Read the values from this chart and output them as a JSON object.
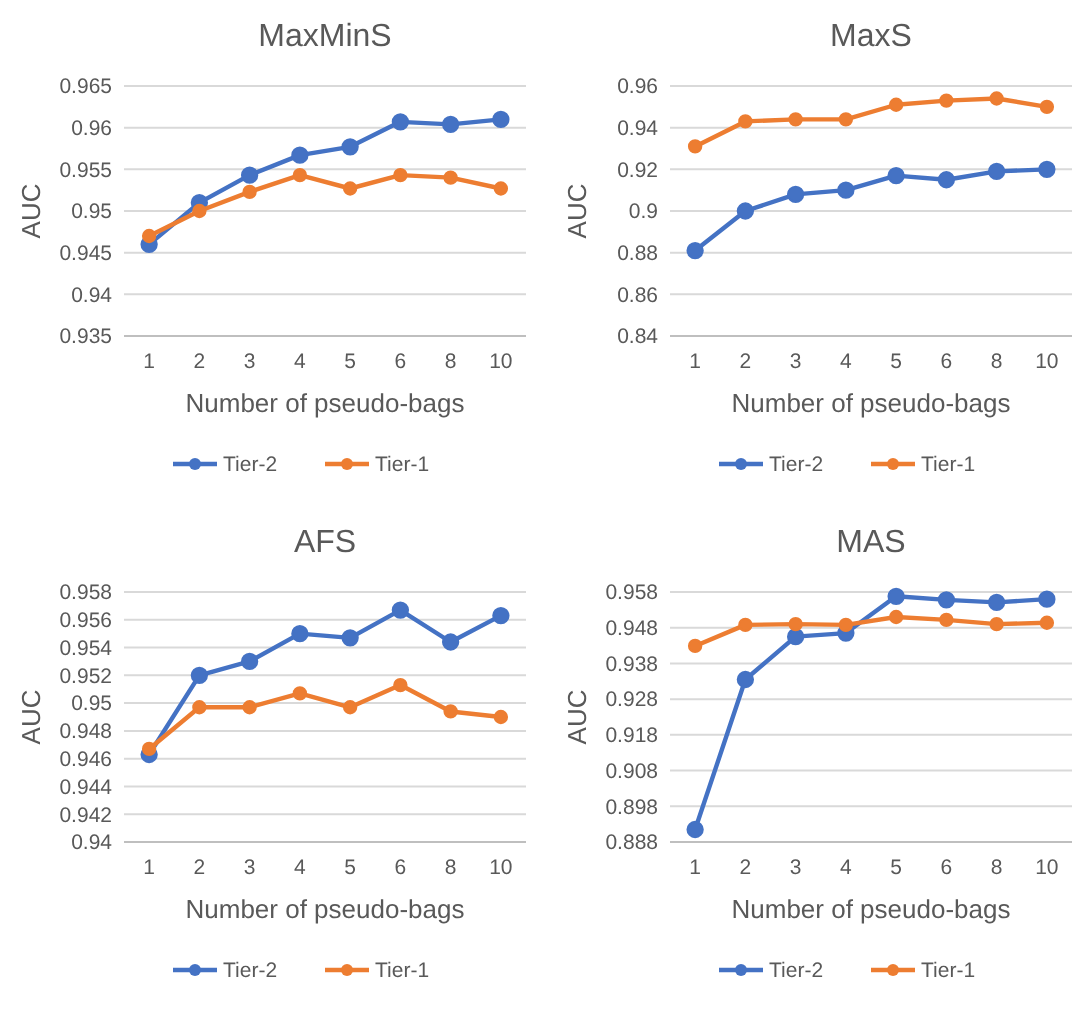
{
  "chart_data": [
    {
      "type": "line",
      "title": "MaxMinS",
      "xlabel": "Number of pseudo-bags",
      "ylabel": "AUC",
      "categories": [
        "1",
        "2",
        "3",
        "4",
        "5",
        "6",
        "8",
        "10"
      ],
      "ylim": [
        0.935,
        0.965
      ],
      "yticks": [
        0.935,
        0.94,
        0.945,
        0.95,
        0.955,
        0.96,
        0.965
      ],
      "grid": "y",
      "legend": "bottom",
      "marker": "circle",
      "series": [
        {
          "name": "Tier-2",
          "color": "#4472c4",
          "values": [
            0.946,
            0.951,
            0.9543,
            0.9567,
            0.9577,
            0.9607,
            0.9604,
            0.961
          ]
        },
        {
          "name": "Tier-1",
          "color": "#ed7d31",
          "values": [
            0.947,
            0.95,
            0.9523,
            0.9543,
            0.9527,
            0.9543,
            0.954,
            0.9527
          ]
        }
      ]
    },
    {
      "type": "line",
      "title": "MaxS",
      "xlabel": "Number of pseudo-bags",
      "ylabel": "AUC",
      "categories": [
        "1",
        "2",
        "3",
        "4",
        "5",
        "6",
        "8",
        "10"
      ],
      "ylim": [
        0.84,
        0.96
      ],
      "yticks": [
        0.84,
        0.86,
        0.88,
        0.9,
        0.92,
        0.94,
        0.96
      ],
      "grid": "y",
      "legend": "bottom",
      "marker": "circle",
      "series": [
        {
          "name": "Tier-2",
          "color": "#4472c4",
          "values": [
            0.881,
            0.9,
            0.908,
            0.91,
            0.917,
            0.915,
            0.919,
            0.92
          ]
        },
        {
          "name": "Tier-1",
          "color": "#ed7d31",
          "values": [
            0.931,
            0.943,
            0.944,
            0.944,
            0.951,
            0.953,
            0.954,
            0.95
          ]
        }
      ]
    },
    {
      "type": "line",
      "title": "AFS",
      "xlabel": "Number of pseudo-bags",
      "ylabel": "AUC",
      "categories": [
        "1",
        "2",
        "3",
        "4",
        "5",
        "6",
        "8",
        "10"
      ],
      "ylim": [
        0.94,
        0.958
      ],
      "yticks": [
        0.94,
        0.942,
        0.944,
        0.946,
        0.948,
        0.95,
        0.952,
        0.954,
        0.956,
        0.958
      ],
      "grid": "y",
      "legend": "bottom",
      "marker": "circle",
      "series": [
        {
          "name": "Tier-2",
          "color": "#4472c4",
          "values": [
            0.9463,
            0.952,
            0.953,
            0.955,
            0.9547,
            0.9567,
            0.9544,
            0.9563
          ]
        },
        {
          "name": "Tier-1",
          "color": "#ed7d31",
          "values": [
            0.9467,
            0.9497,
            0.9497,
            0.9507,
            0.9497,
            0.9513,
            0.9494,
            0.949
          ]
        }
      ]
    },
    {
      "type": "line",
      "title": "MAS",
      "xlabel": "Number of pseudo-bags",
      "ylabel": "AUC",
      "categories": [
        "1",
        "2",
        "3",
        "4",
        "5",
        "6",
        "8",
        "10"
      ],
      "ylim": [
        0.888,
        0.958
      ],
      "yticks": [
        0.888,
        0.898,
        0.908,
        0.918,
        0.928,
        0.938,
        0.948,
        0.958
      ],
      "grid": "y",
      "legend": "bottom",
      "marker": "circle",
      "series": [
        {
          "name": "Tier-2",
          "color": "#4472c4",
          "values": [
            0.8915,
            0.9335,
            0.9455,
            0.9465,
            0.9568,
            0.9558,
            0.9551,
            0.956
          ]
        },
        {
          "name": "Tier-1",
          "color": "#ed7d31",
          "values": [
            0.9429,
            0.9488,
            0.949,
            0.9488,
            0.951,
            0.9502,
            0.949,
            0.9494
          ]
        }
      ]
    }
  ]
}
